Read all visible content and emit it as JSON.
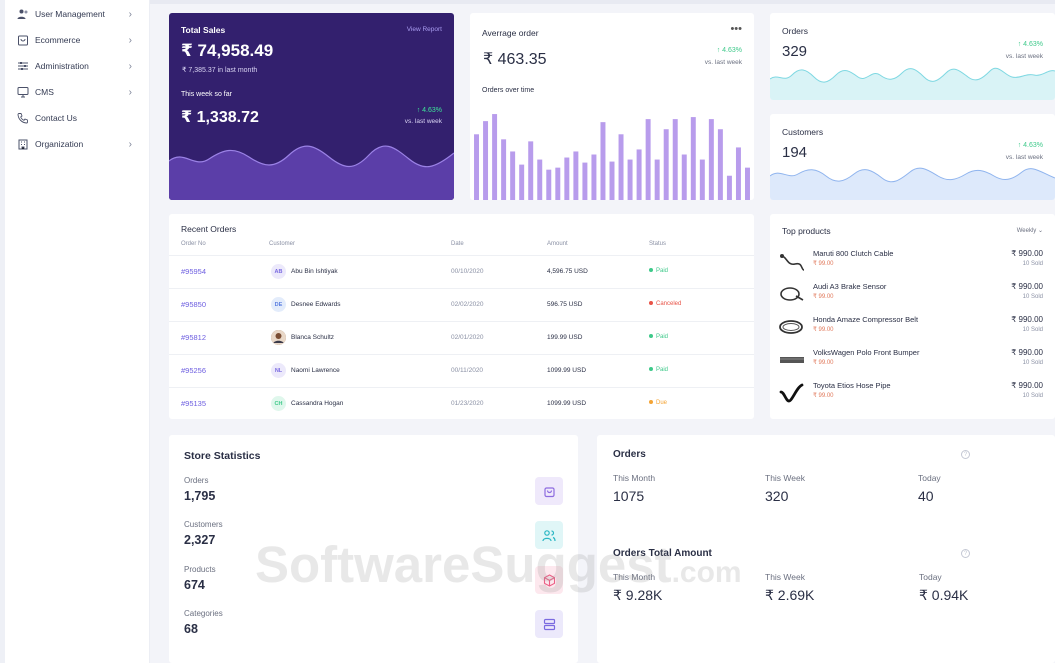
{
  "sidebar": {
    "items": [
      {
        "label": "User Management",
        "icon": "users-icon",
        "chevron": true
      },
      {
        "label": "Ecommerce",
        "icon": "cart-icon",
        "chevron": true
      },
      {
        "label": "Administration",
        "icon": "sliders-icon",
        "chevron": true
      },
      {
        "label": "CMS",
        "icon": "monitor-icon",
        "chevron": true
      },
      {
        "label": "Contact Us",
        "icon": "phone-icon",
        "chevron": false
      },
      {
        "label": "Organization",
        "icon": "building-icon",
        "chevron": true
      }
    ]
  },
  "sales": {
    "title": "Total Sales",
    "link": "View Report",
    "amount": "₹ 74,958.49",
    "last_month": "₹ 7,385.37 in last month",
    "week_label": "This week so far",
    "week_amount": "₹ 1,338.72",
    "pct": "↑ 4.63%",
    "vs": "vs. last week"
  },
  "average": {
    "title": "Averrage order",
    "menu": "•••",
    "amount": "₹ 463.35",
    "pct": "↑ 4.63%",
    "vs": "vs. last week",
    "chart_title": "Orders over time"
  },
  "chart_data": {
    "type": "bar",
    "values": [
      65,
      78,
      85,
      60,
      48,
      35,
      58,
      40,
      30,
      32,
      42,
      48,
      37,
      45,
      77,
      38,
      65,
      40,
      50,
      80,
      40,
      70,
      80,
      45,
      82,
      40,
      80,
      70,
      24,
      52,
      32
    ],
    "ylim": [
      0,
      90
    ],
    "color": "#b89cec"
  },
  "orders_card": {
    "title": "Orders",
    "value": "329",
    "pct": "↑ 4.63%",
    "vs": "vs. last week"
  },
  "customers_card": {
    "title": "Customers",
    "value": "194",
    "pct": "↑ 4.63%",
    "vs": "vs. last week"
  },
  "recent": {
    "title": "Recent Orders",
    "headers": [
      "Order No",
      "Customer",
      "Date",
      "Amount",
      "Status"
    ],
    "rows": [
      {
        "id": "#95954",
        "initials": "AB",
        "name": "Abu Bin Ishtiyak",
        "date": "00/10/2020",
        "amount": "4,596.75 USD",
        "status": "Paid",
        "status_color": "#3ec98a",
        "av_bg": "#ece9fb",
        "av_fg": "#7a6ae0"
      },
      {
        "id": "#95850",
        "initials": "DE",
        "name": "Desnee Edwards",
        "date": "02/02/2020",
        "amount": "596.75 USD",
        "status": "Canceled",
        "status_color": "#e85347",
        "av_bg": "#e3ecfb",
        "av_fg": "#5a7ee0"
      },
      {
        "id": "#95812",
        "initials": "",
        "name": "Blanca Schultz",
        "date": "02/01/2020",
        "amount": "199.99 USD",
        "status": "Paid",
        "status_color": "#3ec98a",
        "av_bg": "#8a6a55",
        "av_fg": "#ffffff"
      },
      {
        "id": "#95256",
        "initials": "NL",
        "name": "Naomi Lawrence",
        "date": "00/11/2020",
        "amount": "1099.99 USD",
        "status": "Paid",
        "status_color": "#3ec98a",
        "av_bg": "#ece9fb",
        "av_fg": "#7a6ae0"
      },
      {
        "id": "#95135",
        "initials": "CH",
        "name": "Cassandra Hogan",
        "date": "01/23/2020",
        "amount": "1099.99 USD",
        "status": "Due",
        "status_color": "#f4a435",
        "av_bg": "#dff7ec",
        "av_fg": "#3ec98a"
      }
    ]
  },
  "top": {
    "title": "Top products",
    "filter": "Weekly",
    "items": [
      {
        "name": "Maruti 800 Clutch Cable",
        "unit": "₹ 99.00",
        "price": "₹ 990.00",
        "sold": "10 Sold"
      },
      {
        "name": "Audi A3 Brake Sensor",
        "unit": "₹ 99.00",
        "price": "₹ 990.00",
        "sold": "10 Sold"
      },
      {
        "name": "Honda Amaze Compressor Belt",
        "unit": "₹ 99.00",
        "price": "₹ 990.00",
        "sold": "10 Sold"
      },
      {
        "name": "VolksWagen Polo Front Bumper",
        "unit": "₹ 99.00",
        "price": "₹ 990.00",
        "sold": "10 Sold"
      },
      {
        "name": "Toyota Etios Hose Pipe",
        "unit": "₹ 99.00",
        "price": "₹ 990.00",
        "sold": "10 Sold"
      }
    ]
  },
  "stats": {
    "title": "Store Statistics",
    "items": [
      {
        "label": "Orders",
        "value": "1,795",
        "icon": "bag-icon",
        "bg": "#efe9fb",
        "fg": "#8d6be0"
      },
      {
        "label": "Customers",
        "value": "2,327",
        "icon": "users-icon",
        "bg": "#e0f6f7",
        "fg": "#2ab7c4"
      },
      {
        "label": "Products",
        "value": "674",
        "icon": "box-icon",
        "bg": "#fde8ee",
        "fg": "#ec5f86"
      },
      {
        "label": "Categories",
        "value": "68",
        "icon": "server-icon",
        "bg": "#ece9fb",
        "fg": "#7a6ae0"
      }
    ]
  },
  "order_summary": {
    "title": "Orders",
    "cols": [
      {
        "label": "This Month",
        "value": "1075"
      },
      {
        "label": "This Week",
        "value": "320"
      },
      {
        "label": "Today",
        "value": "40"
      }
    ],
    "total_title": "Orders Total Amount",
    "total_cols": [
      {
        "label": "This Month",
        "value": "₹  9.28K"
      },
      {
        "label": "This Week",
        "value": "₹  2.69K"
      },
      {
        "label": "Today",
        "value": "₹  0.94K"
      }
    ],
    "help": "?"
  },
  "watermark": {
    "main": "SoftwareSuggest",
    "suffix": ".com"
  }
}
